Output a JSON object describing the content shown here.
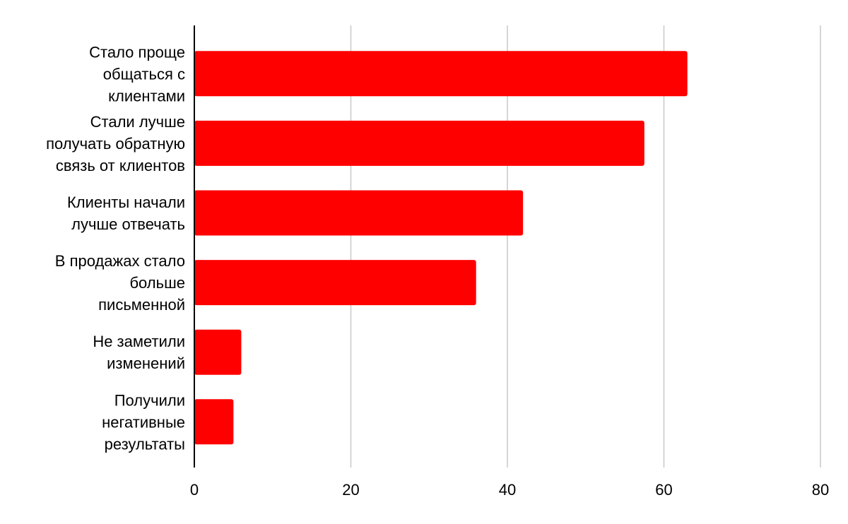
{
  "chart_data": {
    "type": "bar",
    "orientation": "horizontal",
    "title": "",
    "xlabel": "",
    "ylabel": "",
    "categories": [
      [
        "Стало проще",
        "общаться с",
        "клиентами"
      ],
      [
        "Стали лучше",
        "получать обратную",
        "связь от клиентов"
      ],
      [
        "Клиенты начали",
        "лучше отвечать"
      ],
      [
        "В продажах стало",
        "больше",
        "письменной"
      ],
      [
        "Не заметили",
        "изменений"
      ],
      [
        "Получили",
        "негативные",
        "результаты"
      ]
    ],
    "values": [
      63,
      57.5,
      42,
      36,
      6,
      5
    ],
    "xlim": [
      0,
      80
    ],
    "xticks": [
      0,
      20,
      40,
      60,
      80
    ],
    "tick_labels": [
      "0",
      "20",
      "40",
      "60",
      "80"
    ],
    "grid": true,
    "legend": "none",
    "bar_color": "#ff0000",
    "grid_color": "#c8c8c8",
    "axis_color": "#000000"
  }
}
